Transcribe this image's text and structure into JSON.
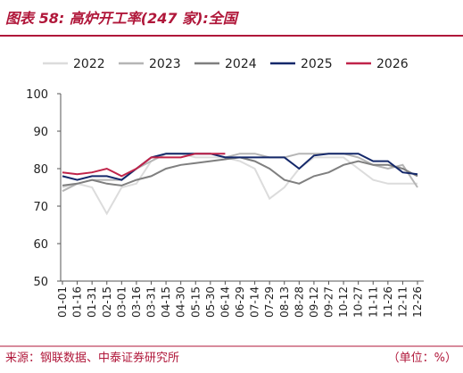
{
  "header": {
    "title": "图表 58:  高炉开工率(247 家):全国"
  },
  "chart_data": {
    "type": "line",
    "categories": [
      "01-01",
      "01-16",
      "01-31",
      "02-15",
      "03-01",
      "03-16",
      "03-31",
      "04-15",
      "04-30",
      "05-15",
      "05-30",
      "06-14",
      "06-29",
      "07-14",
      "07-29",
      "08-13",
      "08-28",
      "09-12",
      "09-27",
      "10-12",
      "10-27",
      "11-11",
      "11-26",
      "12-11",
      "12-26"
    ],
    "series": [
      {
        "name": "2022",
        "color": "#dcdcdc",
        "values": [
          75,
          76,
          75,
          68,
          75,
          76,
          82,
          84,
          84,
          83,
          83,
          83,
          82,
          80,
          72,
          75,
          80,
          83,
          83,
          83,
          80,
          77,
          76,
          76,
          76
        ]
      },
      {
        "name": "2023",
        "color": "#b5b5b5",
        "values": [
          74,
          76,
          77,
          77,
          77,
          80,
          82,
          84,
          84,
          84,
          84,
          83,
          84,
          84,
          83,
          83,
          84,
          84,
          84,
          84,
          83,
          81,
          80,
          81,
          75
        ]
      },
      {
        "name": "2024",
        "color": "#7f7f7f",
        "values": [
          75.5,
          76,
          77,
          76,
          75.5,
          77,
          78,
          80,
          81,
          81.5,
          82,
          82.5,
          83,
          82,
          80,
          77,
          76,
          78,
          79,
          81,
          82,
          81,
          81,
          80,
          78
        ]
      },
      {
        "name": "2025",
        "color": "#14286a",
        "values": [
          78,
          77,
          78,
          78,
          77,
          80,
          83,
          84,
          84,
          84,
          84,
          83,
          83,
          83,
          83,
          83,
          80,
          83.5,
          84,
          84,
          84,
          82,
          82,
          79,
          78.5
        ]
      },
      {
        "name": "2026",
        "color": "#c0244a",
        "values": [
          79,
          78.5,
          79,
          80,
          78,
          80,
          83,
          83,
          83,
          84,
          84,
          84,
          null,
          null,
          null,
          null,
          null,
          null,
          null,
          null,
          null,
          null,
          null,
          null,
          null
        ]
      }
    ],
    "ylim": [
      50,
      100
    ],
    "yticks": [
      50,
      60,
      70,
      80,
      90,
      100
    ],
    "grid": false
  },
  "footer": {
    "source": "来源：钢联数据、中泰证券研究所",
    "unit": "（单位：%）"
  }
}
